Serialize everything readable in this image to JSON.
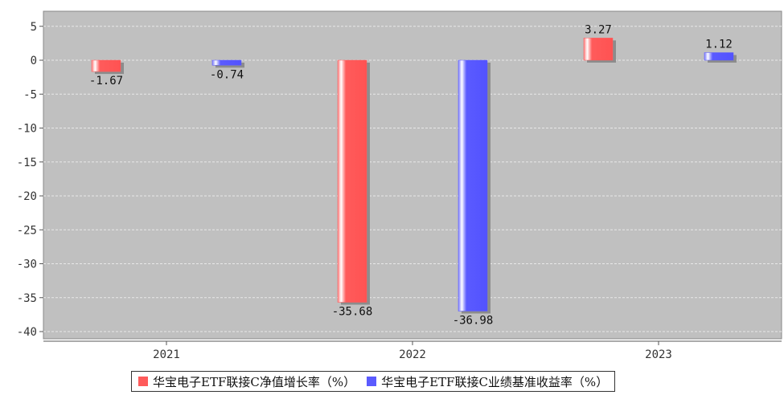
{
  "chart_data": {
    "type": "bar",
    "categories": [
      "2021",
      "2022",
      "2023"
    ],
    "series": [
      {
        "name": "华宝电子ETF联接C净值增长率（%）",
        "values": [
          -1.67,
          -35.68,
          3.27
        ],
        "value_labels": [
          "-1.67",
          "-35.68",
          "3.27"
        ],
        "color": "#ff5b5b"
      },
      {
        "name": "华宝电子ETF联接C业绩基准收益率（%）",
        "values": [
          -0.74,
          -36.98,
          1.12
        ],
        "value_labels": [
          "-0.74",
          "-36.98",
          "1.12"
        ],
        "color": "#5b5bff"
      }
    ],
    "yticks": [
      "5",
      "0",
      "-5",
      "-10",
      "-15",
      "-20",
      "-25",
      "-30",
      "-35",
      "-40"
    ],
    "ylim": [
      -41,
      7
    ],
    "grid": true,
    "legend_position": "bottom",
    "plot_background": "#c0c0c0"
  }
}
